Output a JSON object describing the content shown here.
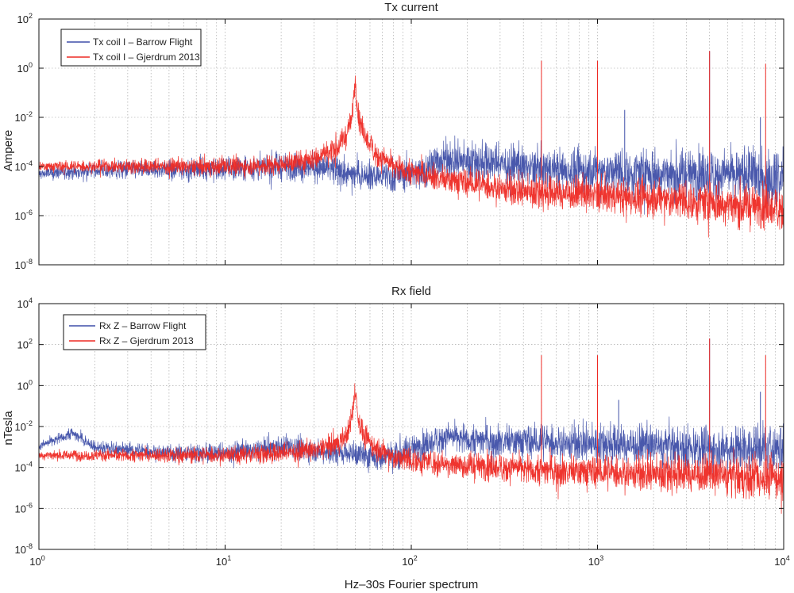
{
  "figure": {
    "xlabel": "Hz–30s Fourier spectrum"
  },
  "colors": {
    "blue": "#3f4fa8",
    "red": "#ee2a24",
    "grid": "#9a9a9a"
  },
  "chart_data": [
    {
      "type": "line",
      "title": "Tx current",
      "ylabel": "Ampere",
      "xscale": "log",
      "yscale": "log",
      "xlim": [
        1,
        10000
      ],
      "ylim": [
        1e-08,
        100
      ],
      "grid": true,
      "legend_position": "top-left",
      "xticks": [
        "10^0",
        "10^1",
        "10^2",
        "10^3",
        "10^4"
      ],
      "yticks": [
        "10^-8",
        "10^-6",
        "10^-4",
        "10^-2",
        "10^0",
        "10^2"
      ],
      "x_ticks": [
        "0",
        "1",
        "2",
        "3",
        "4"
      ],
      "y_ticks": [
        "-8",
        "-6",
        "-4",
        "-2",
        "0",
        "2"
      ],
      "series": [
        {
          "name": "Tx coil I – Barrow Flight",
          "color": "#3f4fa8",
          "baseline": [
            [
              1,
              5e-05
            ],
            [
              2,
              7e-05
            ],
            [
              10,
              8e-05
            ],
            [
              30,
              0.0001
            ],
            [
              45,
              5e-05
            ],
            [
              70,
              4e-05
            ],
            [
              110,
              6e-05
            ],
            [
              150,
              0.0002
            ],
            [
              250,
              0.00015
            ],
            [
              500,
              8e-05
            ],
            [
              1000,
              6e-05
            ],
            [
              3000,
              5e-05
            ],
            [
              10000,
              4e-05
            ]
          ],
          "spread_decades": 0.9,
          "peaks": [
            [
              150,
              0.0004
            ],
            [
              1000,
              0.2
            ],
            [
              1400,
              0.02
            ],
            [
              4000,
              5
            ],
            [
              7500,
              0.01
            ]
          ]
        },
        {
          "name": "Tx coil I – Gjerdrum 2013",
          "color": "#ee2a24",
          "baseline": [
            [
              1,
              0.0001
            ],
            [
              5,
              0.0001
            ],
            [
              10,
              0.0001
            ],
            [
              20,
              0.00012
            ],
            [
              30,
              0.0002
            ],
            [
              40,
              0.0006
            ],
            [
              45,
              0.002
            ],
            [
              48,
              0.01
            ],
            [
              50,
              0.3
            ],
            [
              52,
              0.01
            ],
            [
              56,
              0.002
            ],
            [
              65,
              0.0003
            ],
            [
              80,
              0.0001
            ],
            [
              150,
              3e-05
            ],
            [
              400,
              1e-05
            ],
            [
              1000,
              7e-06
            ],
            [
              3000,
              4e-06
            ],
            [
              10000,
              2e-06
            ]
          ],
          "spread_decades": 0.7,
          "peaks": [
            [
              50,
              0.3
            ],
            [
              500,
              2
            ],
            [
              1000,
              2
            ],
            [
              4000,
              5
            ],
            [
              8000,
              1.5
            ]
          ]
        }
      ]
    },
    {
      "type": "line",
      "title": "Rx field",
      "ylabel": "nTesla",
      "xscale": "log",
      "yscale": "log",
      "xlim": [
        1,
        10000
      ],
      "ylim": [
        1e-08,
        10000
      ],
      "grid": true,
      "legend_position": "top-left",
      "x_ticks": [
        "0",
        "1",
        "2",
        "3",
        "4"
      ],
      "y_ticks": [
        "-8",
        "-6",
        "-4",
        "-2",
        "0",
        "2",
        "4"
      ],
      "series": [
        {
          "name": "Rx Z – Barrow Flight",
          "color": "#3f4fa8",
          "baseline": [
            [
              1,
              0.001
            ],
            [
              1.5,
              0.005
            ],
            [
              2,
              0.001
            ],
            [
              5,
              0.0005
            ],
            [
              10,
              0.0005
            ],
            [
              20,
              0.001
            ],
            [
              45,
              0.0005
            ],
            [
              70,
              0.0003
            ],
            [
              110,
              0.001
            ],
            [
              150,
              0.003
            ],
            [
              300,
              0.002
            ],
            [
              1000,
              0.0015
            ],
            [
              3000,
              0.001
            ],
            [
              10000,
              0.0008
            ]
          ],
          "spread_decades": 0.9,
          "peaks": [
            [
              1.5,
              0.008
            ],
            [
              150,
              0.005
            ],
            [
              1000,
              3
            ],
            [
              1300,
              0.2
            ],
            [
              4000,
              200
            ],
            [
              7500,
              0.5
            ]
          ]
        },
        {
          "name": "Rx Z – Gjerdrum 2013",
          "color": "#ee2a24",
          "baseline": [
            [
              1,
              0.0004
            ],
            [
              5,
              0.0004
            ],
            [
              10,
              0.0004
            ],
            [
              20,
              0.0005
            ],
            [
              30,
              0.0007
            ],
            [
              40,
              0.0015
            ],
            [
              45,
              0.004
            ],
            [
              48,
              0.02
            ],
            [
              50,
              0.8
            ],
            [
              52,
              0.02
            ],
            [
              56,
              0.003
            ],
            [
              65,
              0.0008
            ],
            [
              80,
              0.0003
            ],
            [
              150,
              0.00015
            ],
            [
              500,
              8e-05
            ],
            [
              1000,
              6e-05
            ],
            [
              3000,
              5e-05
            ],
            [
              10000,
              3e-05
            ]
          ],
          "spread_decades": 0.8,
          "peaks": [
            [
              50,
              0.8
            ],
            [
              500,
              30
            ],
            [
              1000,
              30
            ],
            [
              4000,
              200
            ],
            [
              8000,
              30
            ]
          ]
        }
      ]
    }
  ]
}
